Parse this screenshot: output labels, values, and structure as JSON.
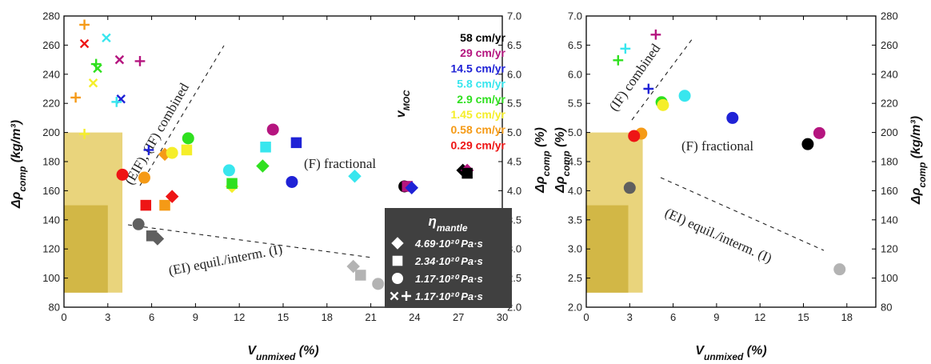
{
  "colors": {
    "58 cm/yr": "#000000",
    "29 cm/yr": "#b5157f",
    "14.5 cm/yr": "#1f22d6",
    "5.8 cm/yr": "#38e6ee",
    "2.9 cm/yr": "#2fe01f",
    "1.45 cm/yr": "#f5ee2a",
    "0.58 cm/yr": "#f59a16",
    "0.29 cm/yr": "#ee1515",
    "grey_dark": "#5f5f5f",
    "grey_light": "#b3b3b3",
    "box_outer": "#e9d47c",
    "box_inner": "#d2b746",
    "legend_bg": "#404040"
  },
  "chart_data": [
    {
      "type": "scatter",
      "panel": "left",
      "xlabel": "V_unmixed (%)",
      "ylabel": "Δρ_comp (kg/m³)",
      "ylabel_right": "Δρ_comp (%)",
      "xlim": [
        0,
        30
      ],
      "ylim": [
        80,
        280
      ],
      "ylim_right": [
        2.0,
        7.0
      ],
      "xticks": [
        "0",
        "3",
        "6",
        "9",
        "12",
        "15",
        "18",
        "21",
        "24",
        "27",
        "30"
      ],
      "yticks": [
        "80",
        "100",
        "120",
        "140",
        "160",
        "180",
        "200",
        "220",
        "240",
        "260",
        "280"
      ],
      "yticks_right": [
        "2.0",
        "2.5",
        "3.0",
        "3.5",
        "4.0",
        "4.5",
        "5.0",
        "5.5",
        "6.0",
        "6.5",
        "7.0"
      ],
      "regime_labels": [
        "(EIF), (IF) combined",
        "(F) fractional",
        "(EI) equil./interm. (I)"
      ],
      "vmoc_legend": {
        "title": "v",
        "title_sub": "MOC",
        "items": [
          "58 cm/yr",
          "29 cm/yr",
          "14.5 cm/yr",
          "5.8 cm/yr",
          "2.9 cm/yr",
          "1.45 cm/yr",
          "0.58 cm/yr",
          "0.29 cm/yr"
        ]
      },
      "viscosity_legend": {
        "title": "η",
        "title_sub": "mantle",
        "items": [
          {
            "marker": "diamond",
            "label": "4.69·10²⁰ Pa·s"
          },
          {
            "marker": "square",
            "label": "2.34·10²⁰ Pa·s"
          },
          {
            "marker": "circle",
            "label": "1.17·10²⁰ Pa·s"
          },
          {
            "marker": "cross-plus",
            "label": "1.17·10²⁰ Pa·s"
          }
        ]
      },
      "points": [
        {
          "series": "0.58 cm/yr",
          "marker": "plus",
          "x": 1.4,
          "y": 274
        },
        {
          "series": "0.29 cm/yr",
          "marker": "x",
          "x": 1.4,
          "y": 261
        },
        {
          "series": "5.8 cm/yr",
          "marker": "x",
          "x": 2.9,
          "y": 265
        },
        {
          "series": "2.9 cm/yr",
          "marker": "plus",
          "x": 2.2,
          "y": 247
        },
        {
          "series": "2.9 cm/yr",
          "marker": "x",
          "x": 2.3,
          "y": 244
        },
        {
          "series": "29 cm/yr",
          "marker": "x",
          "x": 3.8,
          "y": 250
        },
        {
          "series": "29 cm/yr",
          "marker": "plus",
          "x": 5.2,
          "y": 249
        },
        {
          "series": "1.45 cm/yr",
          "marker": "x",
          "x": 2.0,
          "y": 234
        },
        {
          "series": "0.58 cm/yr",
          "marker": "plus",
          "x": 0.8,
          "y": 224
        },
        {
          "series": "14.5 cm/yr",
          "marker": "x",
          "x": 3.9,
          "y": 223
        },
        {
          "series": "5.8 cm/yr",
          "marker": "plus",
          "x": 3.6,
          "y": 221
        },
        {
          "series": "1.45 cm/yr",
          "marker": "plus",
          "x": 1.4,
          "y": 199
        },
        {
          "series": "14.5 cm/yr",
          "marker": "plus",
          "x": 5.8,
          "y": 188
        },
        {
          "series": "0.29 cm/yr",
          "marker": "circle",
          "x": 4.0,
          "y": 171
        },
        {
          "series": "0.58 cm/yr",
          "marker": "circle",
          "x": 5.5,
          "y": 169
        },
        {
          "series": "0.58 cm/yr",
          "marker": "diamond",
          "x": 6.9,
          "y": 185
        },
        {
          "series": "1.45 cm/yr",
          "marker": "circle",
          "x": 7.4,
          "y": 186
        },
        {
          "series": "1.45 cm/yr",
          "marker": "square",
          "x": 8.4,
          "y": 188
        },
        {
          "series": "2.9 cm/yr",
          "marker": "circle",
          "x": 8.5,
          "y": 196
        },
        {
          "series": "0.29 cm/yr",
          "marker": "square",
          "x": 5.6,
          "y": 150
        },
        {
          "series": "0.58 cm/yr",
          "marker": "square",
          "x": 6.9,
          "y": 150
        },
        {
          "series": "0.29 cm/yr",
          "marker": "diamond",
          "x": 7.4,
          "y": 156
        },
        {
          "series": "grey_dark",
          "marker": "circle",
          "x": 5.1,
          "y": 137
        },
        {
          "series": "grey_dark",
          "marker": "square",
          "x": 6.0,
          "y": 129
        },
        {
          "series": "grey_dark",
          "marker": "diamond",
          "x": 6.4,
          "y": 127
        },
        {
          "series": "5.8 cm/yr",
          "marker": "circle",
          "x": 11.3,
          "y": 174
        },
        {
          "series": "1.45 cm/yr",
          "marker": "diamond",
          "x": 11.5,
          "y": 163
        },
        {
          "series": "2.9 cm/yr",
          "marker": "square",
          "x": 11.5,
          "y": 165
        },
        {
          "series": "2.9 cm/yr",
          "marker": "diamond",
          "x": 13.6,
          "y": 177
        },
        {
          "series": "5.8 cm/yr",
          "marker": "square",
          "x": 13.8,
          "y": 190
        },
        {
          "series": "29 cm/yr",
          "marker": "circle",
          "x": 14.3,
          "y": 202
        },
        {
          "series": "14.5 cm/yr",
          "marker": "square",
          "x": 15.9,
          "y": 193
        },
        {
          "series": "14.5 cm/yr",
          "marker": "circle",
          "x": 15.6,
          "y": 166
        },
        {
          "series": "5.8 cm/yr",
          "marker": "diamond",
          "x": 19.9,
          "y": 170
        },
        {
          "series": "58 cm/yr",
          "marker": "circle",
          "x": 23.3,
          "y": 163
        },
        {
          "series": "29 cm/yr",
          "marker": "square",
          "x": 23.5,
          "y": 163
        },
        {
          "series": "14.5 cm/yr",
          "marker": "diamond",
          "x": 23.8,
          "y": 162
        },
        {
          "series": "58 cm/yr",
          "marker": "diamond",
          "x": 27.3,
          "y": 174
        },
        {
          "series": "29 cm/yr",
          "marker": "diamond",
          "x": 27.6,
          "y": 174
        },
        {
          "series": "58 cm/yr",
          "marker": "square",
          "x": 27.6,
          "y": 172
        },
        {
          "series": "grey_light",
          "marker": "diamond",
          "x": 19.8,
          "y": 108
        },
        {
          "series": "grey_light",
          "marker": "square",
          "x": 20.3,
          "y": 102
        },
        {
          "series": "grey_light",
          "marker": "circle",
          "x": 21.5,
          "y": 96
        }
      ]
    },
    {
      "type": "scatter",
      "panel": "right",
      "xlabel": "V_unmixed (%)",
      "ylabel": "Δρ_comp (%)",
      "ylabel_right": "Δρ_comp (kg/m³)",
      "xlim": [
        0,
        20
      ],
      "ylim": [
        2.0,
        7.0
      ],
      "ylim_right": [
        80,
        280
      ],
      "xticks": [
        "0",
        "3",
        "6",
        "9",
        "12",
        "15",
        "18"
      ],
      "yticks": [
        "2.0",
        "2.5",
        "3.0",
        "3.5",
        "4.0",
        "4.5",
        "5.0",
        "5.5",
        "6.0",
        "6.5",
        "7.0"
      ],
      "yticks_right": [
        "80",
        "100",
        "120",
        "140",
        "160",
        "180",
        "200",
        "220",
        "240",
        "260",
        "280"
      ],
      "regime_labels": [
        "(IF) combined",
        "(F) fractional",
        "(EI) equil./interm. (I)"
      ],
      "points": [
        {
          "series": "29 cm/yr",
          "marker": "plus",
          "x": 4.8,
          "y": 6.68
        },
        {
          "series": "5.8 cm/yr",
          "marker": "plus",
          "x": 2.7,
          "y": 6.44
        },
        {
          "series": "2.9 cm/yr",
          "marker": "plus",
          "x": 2.2,
          "y": 6.24
        },
        {
          "series": "14.5 cm/yr",
          "marker": "plus",
          "x": 4.3,
          "y": 5.75
        },
        {
          "series": "5.8 cm/yr",
          "marker": "circle",
          "x": 6.8,
          "y": 5.63
        },
        {
          "series": "2.9 cm/yr",
          "marker": "circle",
          "x": 5.2,
          "y": 5.52
        },
        {
          "series": "1.45 cm/yr",
          "marker": "circle",
          "x": 5.3,
          "y": 5.47
        },
        {
          "series": "14.5 cm/yr",
          "marker": "circle",
          "x": 10.1,
          "y": 5.25
        },
        {
          "series": "29 cm/yr",
          "marker": "circle",
          "x": 16.1,
          "y": 4.99
        },
        {
          "series": "58 cm/yr",
          "marker": "circle",
          "x": 15.3,
          "y": 4.8
        },
        {
          "series": "0.58 cm/yr",
          "marker": "circle",
          "x": 3.8,
          "y": 4.98
        },
        {
          "series": "0.29 cm/yr",
          "marker": "circle",
          "x": 3.3,
          "y": 4.94
        },
        {
          "series": "grey_dark",
          "marker": "circle",
          "x": 3.0,
          "y": 4.05
        },
        {
          "series": "grey_light",
          "marker": "circle",
          "x": 17.5,
          "y": 2.65
        }
      ]
    }
  ]
}
